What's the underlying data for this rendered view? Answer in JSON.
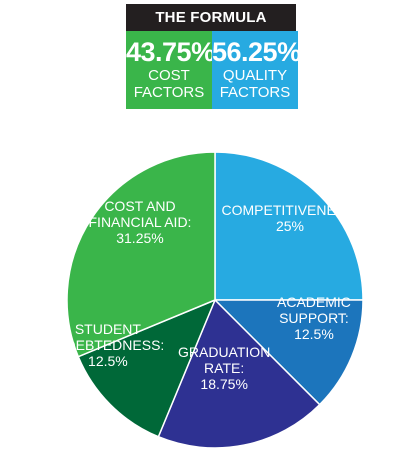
{
  "header": {
    "title": "THE FORMULA"
  },
  "summary": [
    {
      "percent": "43.75%",
      "label_line1": "COST",
      "label_line2": "FACTORS",
      "color": "#3ab54a"
    },
    {
      "percent": "56.25%",
      "label_line1": "QUALITY",
      "label_line2": "FACTORS",
      "color": "#27aae1"
    }
  ],
  "chart_data": {
    "type": "pie",
    "start": "12 o'clock",
    "direction": "clockwise",
    "slices": [
      {
        "label_lines": [
          "COMPETITIVENESS:",
          "25%"
        ],
        "name": "COMPETITIVENESS",
        "value": 25,
        "color": "#27aae1"
      },
      {
        "label_lines": [
          "ACADEMIC",
          "SUPPORT:",
          "12.5%"
        ],
        "name": "ACADEMIC SUPPORT",
        "value": 12.5,
        "color": "#1c75bc"
      },
      {
        "label_lines": [
          "GRADUATION",
          "RATE:",
          "18.75%"
        ],
        "name": "GRADUATION RATE",
        "value": 18.75,
        "color": "#2e3192"
      },
      {
        "label_lines": [
          "STUDENT",
          "INDEBTEDNESS:",
          "12.5%"
        ],
        "name": "STUDENT INDEBTEDNESS",
        "value": 12.5,
        "color": "#006838"
      },
      {
        "label_lines": [
          "COST AND",
          "FINANCIAL AID:",
          "31.25%"
        ],
        "name": "COST AND FINANCIAL AID",
        "value": 31.25,
        "color": "#3ab54a"
      }
    ]
  }
}
